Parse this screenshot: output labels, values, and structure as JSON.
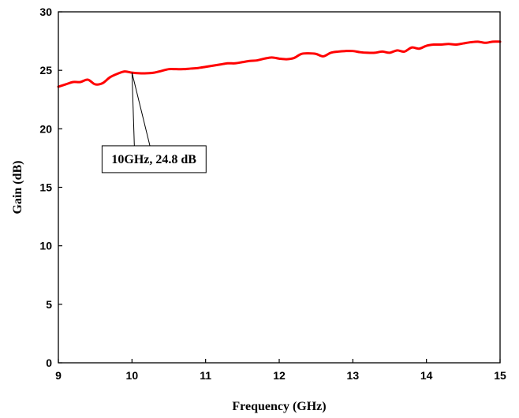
{
  "chart_data": {
    "type": "line",
    "title": "",
    "xlabel": "Frequency (GHz)",
    "ylabel": "Gain (dB)",
    "xlim": [
      9,
      15
    ],
    "ylim": [
      0,
      30
    ],
    "x_ticks": [
      9,
      10,
      11,
      12,
      13,
      14,
      15
    ],
    "y_ticks": [
      0,
      5,
      10,
      15,
      20,
      25,
      30
    ],
    "grid": false,
    "series_color": "#ff0000",
    "series": [
      {
        "x": [
          9.0,
          9.1,
          9.2,
          9.3,
          9.4,
          9.5,
          9.6,
          9.7,
          9.8,
          9.9,
          10.0,
          10.1,
          10.2,
          10.3,
          10.4,
          10.5,
          10.6,
          10.7,
          10.8,
          10.9,
          11.0,
          11.1,
          11.2,
          11.3,
          11.4,
          11.5,
          11.6,
          11.7,
          11.8,
          11.9,
          12.0,
          12.1,
          12.2,
          12.3,
          12.4,
          12.5,
          12.6,
          12.7,
          12.8,
          12.9,
          13.0,
          13.1,
          13.2,
          13.3,
          13.4,
          13.5,
          13.6,
          13.7,
          13.8,
          13.9,
          14.0,
          14.1,
          14.2,
          14.3,
          14.4,
          14.5,
          14.6,
          14.7,
          14.8,
          14.9,
          15.0
        ],
        "values": [
          23.6,
          23.8,
          24.0,
          24.0,
          24.2,
          23.8,
          23.9,
          24.4,
          24.7,
          24.9,
          24.8,
          24.75,
          24.75,
          24.8,
          24.95,
          25.1,
          25.1,
          25.1,
          25.15,
          25.2,
          25.3,
          25.4,
          25.5,
          25.6,
          25.6,
          25.7,
          25.8,
          25.85,
          26.0,
          26.1,
          26.0,
          25.95,
          26.05,
          26.4,
          26.45,
          26.4,
          26.2,
          26.5,
          26.6,
          26.65,
          26.65,
          26.55,
          26.5,
          26.5,
          26.6,
          26.5,
          26.7,
          26.6,
          26.95,
          26.85,
          27.1,
          27.2,
          27.2,
          27.25,
          27.2,
          27.3,
          27.4,
          27.45,
          27.35,
          27.45,
          27.45
        ]
      }
    ],
    "annotation": {
      "text": "10GHz, 24.8 dB",
      "point": [
        10,
        24.8
      ],
      "box_anchor": [
        10.3,
        17.4
      ]
    }
  }
}
